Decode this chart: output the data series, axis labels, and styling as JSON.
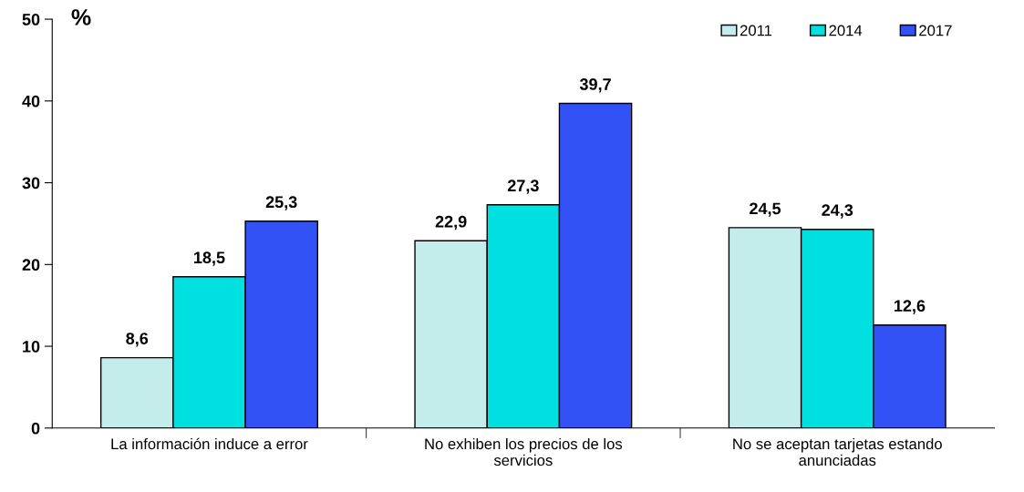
{
  "chart_data": {
    "type": "bar",
    "ylabel": "%",
    "categories": [
      "La información induce a error",
      "No exhiben los precios de los\nservicios",
      "No se aceptan tarjetas estando\nanunciadas"
    ],
    "series": [
      {
        "name": "2011",
        "color": "#c4ecea",
        "values": [
          8.6,
          22.9,
          24.5
        ],
        "value_labels": [
          "8,6",
          "22,9",
          "24,5"
        ]
      },
      {
        "name": "2014",
        "color": "#00e0e0",
        "values": [
          18.5,
          27.3,
          24.3
        ],
        "value_labels": [
          "18,5",
          "27,3",
          "24,3"
        ]
      },
      {
        "name": "2017",
        "color": "#3352f5",
        "values": [
          25.3,
          39.7,
          12.6
        ],
        "value_labels": [
          "25,3",
          "39,7",
          "12,6"
        ]
      }
    ],
    "ylim": [
      0,
      50
    ],
    "yticks": [
      0,
      10,
      20,
      30,
      40,
      50
    ],
    "legend": "top right"
  }
}
